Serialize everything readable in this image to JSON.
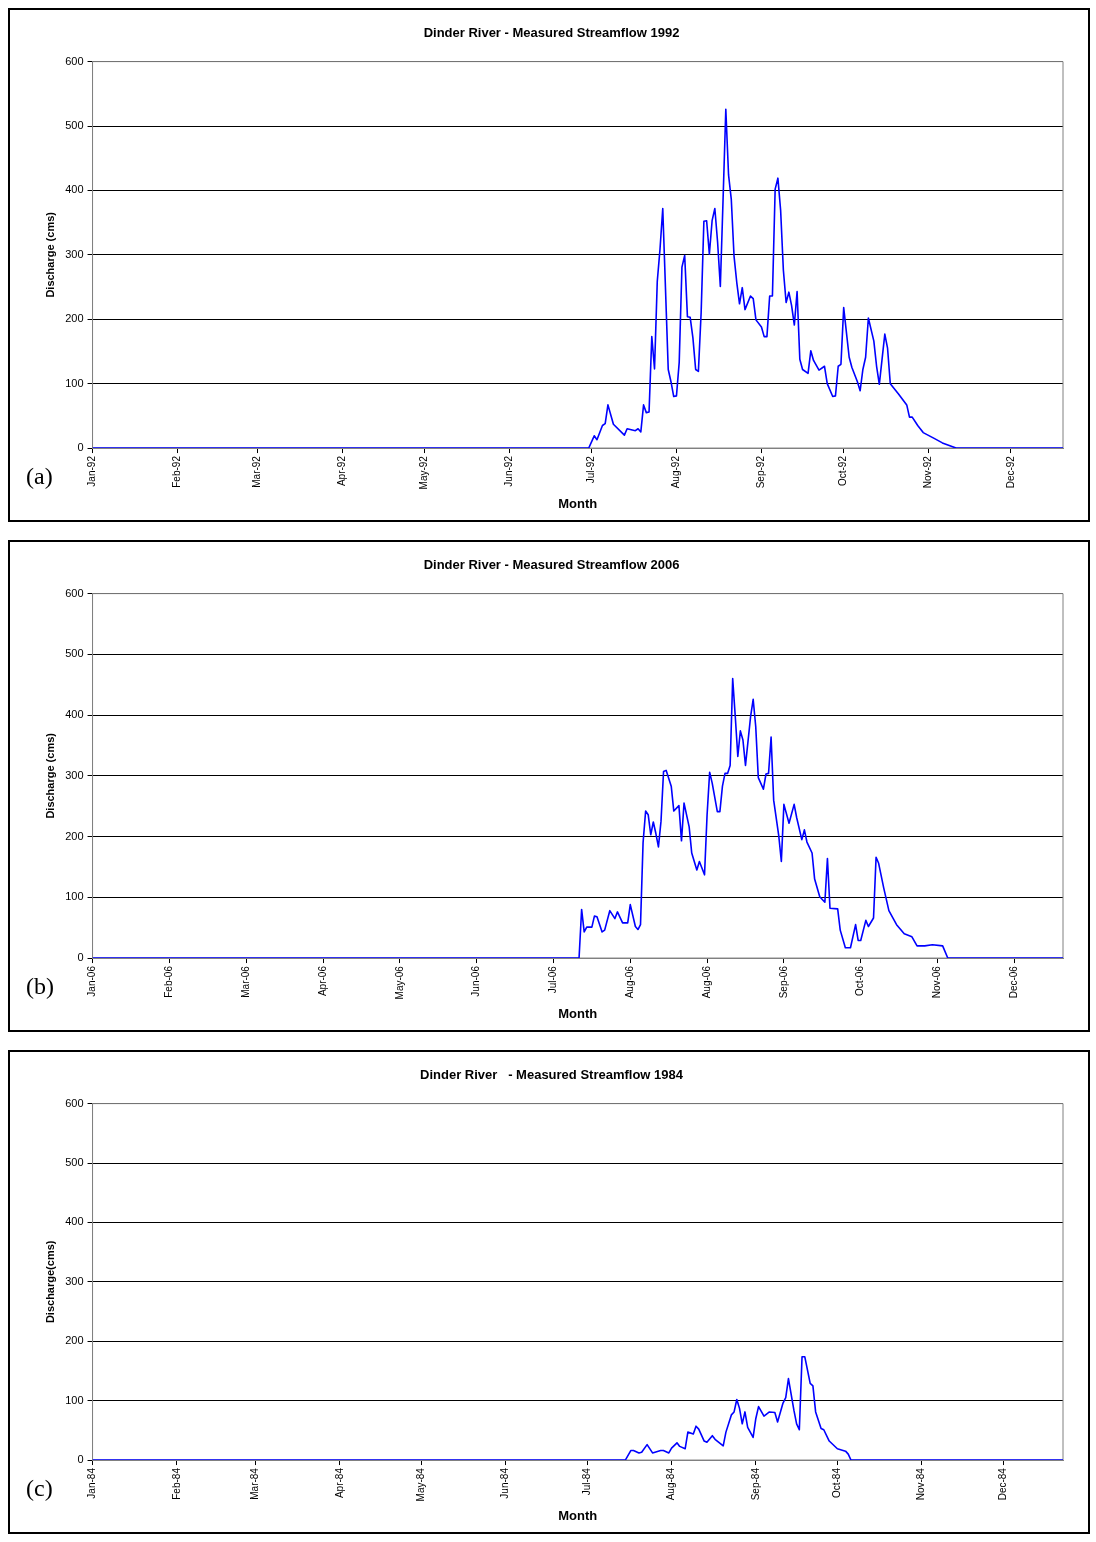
{
  "chart_data": [
    {
      "type": "line",
      "title": "Dinder River - Measured Streamflow 1992",
      "xlabel": "Month",
      "ylabel": "Discharge (cms)",
      "annotations": [
        "(a)"
      ],
      "color": "#0000ff",
      "grid": "y",
      "legend": false,
      "xlim": [
        "1992-01-01",
        "1992-12-20"
      ],
      "xticks": [
        {
          "value": "1992-01-01",
          "label": "Jan-92"
        },
        {
          "value": "1992-02-01",
          "label": "Feb-92"
        },
        {
          "value": "1992-03-01",
          "label": "Mar-92"
        },
        {
          "value": "1992-04-01",
          "label": "Apr-92"
        },
        {
          "value": "1992-05-01",
          "label": "May-92"
        },
        {
          "value": "1992-06-01",
          "label": "Jun-92"
        },
        {
          "value": "1992-07-01",
          "label": "Jul-92"
        },
        {
          "value": "1992-08-01",
          "label": "Aug-92"
        },
        {
          "value": "1992-09-01",
          "label": "Sep-92"
        },
        {
          "value": "1992-10-01",
          "label": "Oct-92"
        },
        {
          "value": "1992-11-01",
          "label": "Nov-92"
        },
        {
          "value": "1992-12-01",
          "label": "Dec-92"
        }
      ],
      "ylim": [
        0,
        600
      ],
      "yticks": [
        0,
        100,
        200,
        300,
        400,
        500,
        600
      ],
      "x": [
        "1992-01-01",
        "1992-06-30",
        "1992-07-02",
        "1992-07-03",
        "1992-07-05",
        "1992-07-06",
        "1992-07-07",
        "1992-07-09",
        "1992-07-13",
        "1992-07-14",
        "1992-07-17",
        "1992-07-18",
        "1992-07-19",
        "1992-07-20",
        "1992-07-21",
        "1992-07-22",
        "1992-07-23",
        "1992-07-24",
        "1992-07-25",
        "1992-07-26",
        "1992-07-27",
        "1992-07-29",
        "1992-07-30",
        "1992-07-31",
        "1992-08-01",
        "1992-08-02",
        "1992-08-03",
        "1992-08-04",
        "1992-08-05",
        "1992-08-06",
        "1992-08-07",
        "1992-08-08",
        "1992-08-09",
        "1992-08-10",
        "1992-08-11",
        "1992-08-12",
        "1992-08-13",
        "1992-08-14",
        "1992-08-15",
        "1992-08-16",
        "1992-08-17",
        "1992-08-18",
        "1992-08-19",
        "1992-08-20",
        "1992-08-21",
        "1992-08-22",
        "1992-08-23",
        "1992-08-24",
        "1992-08-25",
        "1992-08-26",
        "1992-08-28",
        "1992-08-29",
        "1992-08-30",
        "1992-09-01",
        "1992-09-02",
        "1992-09-03",
        "1992-09-04",
        "1992-09-05",
        "1992-09-06",
        "1992-09-07",
        "1992-09-08",
        "1992-09-09",
        "1992-09-10",
        "1992-09-11",
        "1992-09-12",
        "1992-09-13",
        "1992-09-14",
        "1992-09-15",
        "1992-09-16",
        "1992-09-18",
        "1992-09-19",
        "1992-09-20",
        "1992-09-22",
        "1992-09-24",
        "1992-09-25",
        "1992-09-27",
        "1992-09-28",
        "1992-09-29",
        "1992-09-30",
        "1992-10-01",
        "1992-10-03",
        "1992-10-04",
        "1992-10-06",
        "1992-10-07",
        "1992-10-08",
        "1992-10-09",
        "1992-10-10",
        "1992-10-12",
        "1992-10-13",
        "1992-10-14",
        "1992-10-15",
        "1992-10-16",
        "1992-10-17",
        "1992-10-18",
        "1992-10-21",
        "1992-10-24",
        "1992-10-25",
        "1992-10-26",
        "1992-10-28",
        "1992-10-30",
        "1992-11-03",
        "1992-11-06",
        "1992-11-11",
        "1992-12-20"
      ],
      "values": [
        0,
        0,
        19,
        13,
        35,
        38,
        67,
        37,
        20,
        30,
        27,
        30,
        25,
        67,
        55,
        56,
        173,
        123,
        259,
        309,
        372,
        122,
        103,
        80,
        81,
        133,
        281,
        299,
        204,
        203,
        171,
        122,
        119,
        210,
        352,
        353,
        301,
        353,
        372,
        320,
        251,
        386,
        526,
        424,
        386,
        298,
        257,
        224,
        249,
        215,
        236,
        232,
        199,
        188,
        173,
        173,
        236,
        236,
        402,
        419,
        369,
        276,
        226,
        242,
        221,
        191,
        243,
        138,
        122,
        116,
        151,
        136,
        121,
        127,
        100,
        80,
        81,
        127,
        130,
        218,
        141,
        125,
        103,
        89,
        122,
        141,
        202,
        166,
        127,
        99,
        138,
        177,
        155,
        100,
        84,
        67,
        48,
        48,
        35,
        24,
        15,
        8,
        0,
        0
      ]
    },
    {
      "type": "line",
      "title": "Dinder River - Measured Streamflow 2006",
      "xlabel": "Month",
      "ylabel": "Discharge (cms)",
      "annotations": [
        "(b)"
      ],
      "color": "#0000ff",
      "grid": "y",
      "legend": false,
      "xlim": [
        "2006-01-03",
        "2007-01-17"
      ],
      "xticks": [
        {
          "value": "2006-01-03",
          "label": "Jan-06"
        },
        {
          "value": "2006-02-02",
          "label": "Feb-06"
        },
        {
          "value": "2006-03-04",
          "label": "Mar-06"
        },
        {
          "value": "2006-04-03",
          "label": "Apr-06"
        },
        {
          "value": "2006-05-03",
          "label": "May-06"
        },
        {
          "value": "2006-06-02",
          "label": "Jun-06"
        },
        {
          "value": "2006-07-02",
          "label": "Jul-06"
        },
        {
          "value": "2006-08-01",
          "label": "Aug-06"
        },
        {
          "value": "2006-08-31",
          "label": "Aug-06"
        },
        {
          "value": "2006-09-30",
          "label": "Sep-06"
        },
        {
          "value": "2006-10-30",
          "label": "Oct-06"
        },
        {
          "value": "2006-11-29",
          "label": "Nov-06"
        },
        {
          "value": "2006-12-29",
          "label": "Dec-06"
        }
      ],
      "ylim": [
        0,
        600
      ],
      "yticks": [
        0,
        100,
        200,
        300,
        400,
        500,
        600
      ],
      "x": [
        "2006-01-03",
        "2006-07-12",
        "2006-07-13",
        "2006-07-14",
        "2006-07-15",
        "2006-07-17",
        "2006-07-18",
        "2006-07-19",
        "2006-07-21",
        "2006-07-22",
        "2006-07-24",
        "2006-07-26",
        "2006-07-27",
        "2006-07-29",
        "2006-07-31",
        "2006-08-01",
        "2006-08-03",
        "2006-08-04",
        "2006-08-05",
        "2006-08-06",
        "2006-08-07",
        "2006-08-08",
        "2006-08-09",
        "2006-08-10",
        "2006-08-11",
        "2006-08-12",
        "2006-08-13",
        "2006-08-14",
        "2006-08-15",
        "2006-08-17",
        "2006-08-18",
        "2006-08-20",
        "2006-08-21",
        "2006-08-22",
        "2006-08-24",
        "2006-08-25",
        "2006-08-27",
        "2006-08-28",
        "2006-08-30",
        "2006-08-31",
        "2006-09-01",
        "2006-09-02",
        "2006-09-04",
        "2006-09-05",
        "2006-09-06",
        "2006-09-07",
        "2006-09-08",
        "2006-09-09",
        "2006-09-10",
        "2006-09-11",
        "2006-09-12",
        "2006-09-13",
        "2006-09-14",
        "2006-09-15",
        "2006-09-17",
        "2006-09-18",
        "2006-09-19",
        "2006-09-20",
        "2006-09-22",
        "2006-09-23",
        "2006-09-24",
        "2006-09-25",
        "2006-09-26",
        "2006-09-28",
        "2006-09-29",
        "2006-09-30",
        "2006-10-02",
        "2006-10-04",
        "2006-10-05",
        "2006-10-07",
        "2006-10-08",
        "2006-10-09",
        "2006-10-11",
        "2006-10-12",
        "2006-10-14",
        "2006-10-16",
        "2006-10-17",
        "2006-10-18",
        "2006-10-21",
        "2006-10-22",
        "2006-10-24",
        "2006-10-26",
        "2006-10-28",
        "2006-10-29",
        "2006-10-30",
        "2006-11-01",
        "2006-11-02",
        "2006-11-04",
        "2006-11-05",
        "2006-11-06",
        "2006-11-08",
        "2006-11-10",
        "2006-11-13",
        "2006-11-16",
        "2006-11-19",
        "2006-11-21",
        "2006-11-24",
        "2006-11-27",
        "2006-12-01",
        "2006-12-03",
        "2007-01-17"
      ],
      "values": [
        0,
        0,
        80,
        43,
        51,
        51,
        69,
        68,
        43,
        46,
        78,
        65,
        76,
        58,
        58,
        88,
        52,
        47,
        55,
        190,
        242,
        236,
        203,
        224,
        205,
        183,
        225,
        307,
        309,
        283,
        242,
        251,
        193,
        255,
        216,
        173,
        145,
        159,
        137,
        236,
        306,
        288,
        241,
        241,
        283,
        304,
        304,
        317,
        460,
        398,
        332,
        374,
        359,
        317,
        398,
        426,
        381,
        297,
        278,
        303,
        304,
        364,
        260,
        201,
        159,
        253,
        222,
        253,
        231,
        195,
        211,
        191,
        173,
        130,
        101,
        92,
        164,
        82,
        81,
        46,
        17,
        17,
        55,
        29,
        29,
        62,
        52,
        66,
        166,
        156,
        115,
        78,
        55,
        40,
        35,
        20,
        20,
        22,
        20,
        0,
        0
      ]
    },
    {
      "type": "line",
      "title": "Dinder River   - Measured Streamflow 1984",
      "xlabel": "Month",
      "ylabel": "Discharge(cms)",
      "annotations": [
        "(c)"
      ],
      "color": "#0000ff",
      "grid": "y",
      "legend": false,
      "xlim": [
        "1984-01-01",
        "1984-12-23"
      ],
      "xticks": [
        {
          "value": "1984-01-01",
          "label": "Jan-84"
        },
        {
          "value": "1984-02-01",
          "label": "Feb-84"
        },
        {
          "value": "1984-03-01",
          "label": "Mar-84"
        },
        {
          "value": "1984-04-01",
          "label": "Apr-84"
        },
        {
          "value": "1984-05-01",
          "label": "May-84"
        },
        {
          "value": "1984-06-01",
          "label": "Jun-84"
        },
        {
          "value": "1984-07-01",
          "label": "Jul-84"
        },
        {
          "value": "1984-08-01",
          "label": "Aug-84"
        },
        {
          "value": "1984-09-01",
          "label": "Sep-84"
        },
        {
          "value": "1984-10-01",
          "label": "Oct-84"
        },
        {
          "value": "1984-11-01",
          "label": "Nov-84"
        },
        {
          "value": "1984-12-01",
          "label": "Dec-84"
        }
      ],
      "ylim": [
        0,
        600
      ],
      "yticks": [
        0,
        100,
        200,
        300,
        400,
        500,
        600
      ],
      "x": [
        "1984-01-01",
        "1984-07-15",
        "1984-07-17",
        "1984-07-18",
        "1984-07-20",
        "1984-07-21",
        "1984-07-23",
        "1984-07-25",
        "1984-07-28",
        "1984-07-29",
        "1984-07-31",
        "1984-08-01",
        "1984-08-03",
        "1984-08-04",
        "1984-08-06",
        "1984-08-07",
        "1984-08-09",
        "1984-08-10",
        "1984-08-11",
        "1984-08-13",
        "1984-08-14",
        "1984-08-16",
        "1984-08-17",
        "1984-08-20",
        "1984-08-21",
        "1984-08-23",
        "1984-08-24",
        "1984-08-25",
        "1984-08-26",
        "1984-08-27",
        "1984-08-28",
        "1984-08-29",
        "1984-08-31",
        "1984-09-01",
        "1984-09-02",
        "1984-09-04",
        "1984-09-06",
        "1984-09-08",
        "1984-09-09",
        "1984-09-11",
        "1984-09-12",
        "1984-09-13",
        "1984-09-15",
        "1984-09-16",
        "1984-09-17",
        "1984-09-18",
        "1984-09-19",
        "1984-09-21",
        "1984-09-22",
        "1984-09-23",
        "1984-09-25",
        "1984-09-26",
        "1984-09-28",
        "1984-10-01",
        "1984-10-04",
        "1984-10-05",
        "1984-10-06",
        "1984-12-23"
      ],
      "values": [
        0,
        0,
        16,
        16,
        12,
        13,
        26,
        12,
        16,
        16,
        12,
        20,
        29,
        23,
        19,
        47,
        44,
        57,
        52,
        32,
        30,
        41,
        35,
        24,
        47,
        76,
        81,
        102,
        87,
        61,
        81,
        55,
        38,
        70,
        90,
        74,
        81,
        80,
        64,
        96,
        105,
        137,
        84,
        61,
        51,
        174,
        174,
        129,
        125,
        81,
        53,
        51,
        32,
        19,
        15,
        10,
        0,
        0
      ]
    }
  ]
}
